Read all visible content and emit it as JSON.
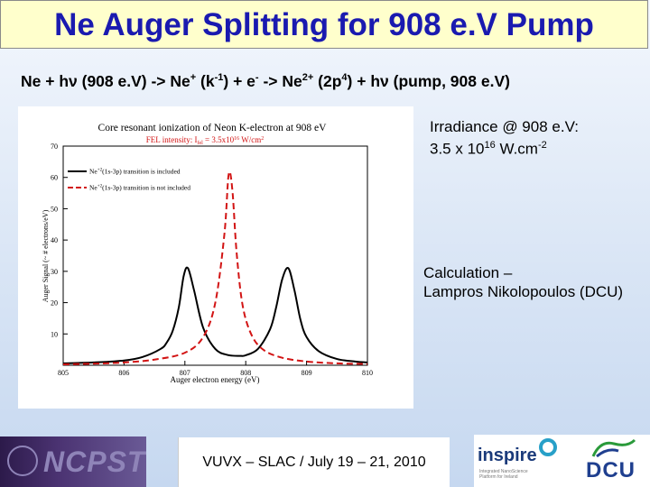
{
  "title": "Ne Auger Splitting for 908 e.V Pump",
  "equation": {
    "p1": "Ne + h",
    "nu1": "ν",
    "p2": " (908 e.V) -> Ne",
    "s1": "+",
    "p3": " (k",
    "s2": "-1",
    "p4": ") + e",
    "s3": "-",
    "p5": " -> Ne",
    "s4": "2+",
    "p6": " (2p",
    "s5": "4",
    "p7": ") + h",
    "nu2": "ν",
    "p8": " (pump, 908 e.V)"
  },
  "irradiance": {
    "line1": "Irradiance @ 908 e.V:",
    "line2_a": "3.5 x 10",
    "line2_exp": "16",
    "line2_b": " W.cm",
    "line2_exp2": "-2"
  },
  "calculation": {
    "line1": "Calculation –",
    "line2": "Lampros Nikolopoulos (DCU)"
  },
  "footer": {
    "left_logo": "NCPST",
    "conference": "VUVX – SLAC / July 19 – 21, 2010",
    "inspire": "inspire",
    "inspire_sub": "Integrated NanoScience Platform for Ireland",
    "dcu": "DCU"
  },
  "colors": {
    "title_text": "#1a1ab0",
    "title_bg": "#ffffcc",
    "series_included": "#000000",
    "series_not_included": "#d21414",
    "plot_title": "#000000",
    "plot_subtitle": "#d21414"
  },
  "chart_data": {
    "type": "line",
    "title": "Core resonant ionization of Neon K-electron at 908 eV",
    "subtitle": "FEL intensity: I",
    "subtitle_sub": "fel",
    "subtitle_rest": " = 3.5x10",
    "subtitle_exp": "16",
    "subtitle_unit": " W/cm",
    "subtitle_unit_exp": "2",
    "xlabel": "Auger electron energy (eV)",
    "ylabel": "Auger Signal (~ # electrons/eV)",
    "xlim": [
      805,
      810
    ],
    "ylim": [
      0,
      70
    ],
    "xticks": [
      805,
      806,
      807,
      808,
      809,
      810
    ],
    "yticks": [
      10,
      20,
      30,
      40,
      50,
      60,
      70
    ],
    "legend_position": "top-left",
    "series": [
      {
        "name": "Ne",
        "name_sup": "+2",
        "name_rest": "(1s-3p) transition is included",
        "style": "solid",
        "x": [
          805.0,
          805.5,
          806.0,
          806.3,
          806.6,
          806.7,
          806.8,
          806.9,
          806.98,
          807.05,
          807.15,
          807.3,
          807.5,
          807.7,
          807.9,
          808.0,
          808.2,
          808.4,
          808.5,
          808.6,
          808.7,
          808.8,
          808.9,
          809.0,
          809.2,
          809.5,
          809.8,
          810.0
        ],
        "y": [
          0.6,
          0.9,
          1.5,
          2.6,
          5.2,
          7.2,
          11.0,
          18.5,
          28.5,
          31.0,
          24.0,
          12.0,
          5.2,
          3.3,
          3.0,
          3.2,
          5.2,
          11.5,
          18.5,
          27.5,
          31.0,
          24.0,
          14.5,
          9.0,
          4.5,
          2.0,
          1.2,
          0.9
        ]
      },
      {
        "name": "Ne",
        "name_sup": "+2",
        "name_rest": "(1s-3p) transition is not included",
        "style": "dashed",
        "x": [
          805.0,
          805.5,
          806.0,
          806.5,
          807.0,
          807.3,
          807.5,
          807.65,
          807.72,
          807.78,
          807.85,
          807.95,
          808.1,
          808.3,
          808.6,
          809.0,
          809.5,
          810.0
        ],
        "y": [
          0.3,
          0.5,
          0.9,
          1.8,
          4.0,
          9.0,
          20.0,
          42.0,
          61.0,
          56.0,
          36.0,
          19.0,
          9.5,
          4.8,
          2.4,
          1.2,
          0.6,
          0.4
        ]
      }
    ]
  }
}
